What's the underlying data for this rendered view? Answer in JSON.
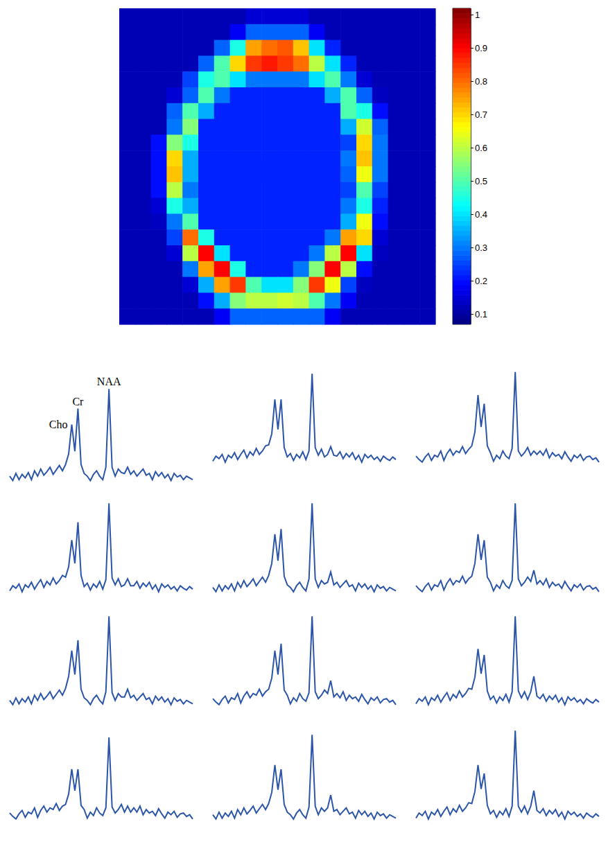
{
  "chart_data": [
    {
      "type": "heatmap",
      "tick_labels": false,
      "color_range": [
        0.07,
        1.02
      ],
      "color_ticks": [
        0.1,
        0.2,
        0.3,
        0.4,
        0.5,
        0.6,
        0.7,
        0.8,
        0.9,
        1
      ],
      "cells": [
        [
          0.12,
          0.12,
          0.12,
          0.12,
          0.12,
          0.12,
          0.12,
          0.12,
          0.15,
          0.15,
          0.15,
          0.15,
          0.12,
          0.12,
          0.12,
          0.12,
          0.12,
          0.12,
          0.12,
          0.12
        ],
        [
          0.12,
          0.12,
          0.12,
          0.12,
          0.12,
          0.12,
          0.12,
          0.18,
          0.28,
          0.28,
          0.28,
          0.28,
          0.18,
          0.12,
          0.12,
          0.12,
          0.12,
          0.12,
          0.12,
          0.12
        ],
        [
          0.12,
          0.12,
          0.12,
          0.12,
          0.12,
          0.12,
          0.28,
          0.45,
          0.75,
          0.8,
          0.82,
          0.72,
          0.4,
          0.22,
          0.12,
          0.12,
          0.12,
          0.12,
          0.12,
          0.12
        ],
        [
          0.12,
          0.12,
          0.12,
          0.12,
          0.12,
          0.28,
          0.5,
          0.7,
          0.85,
          0.88,
          0.85,
          0.8,
          0.6,
          0.4,
          0.22,
          0.12,
          0.12,
          0.12,
          0.12,
          0.12
        ],
        [
          0.12,
          0.12,
          0.12,
          0.12,
          0.25,
          0.45,
          0.5,
          0.4,
          0.3,
          0.3,
          0.3,
          0.3,
          0.4,
          0.5,
          0.3,
          0.15,
          0.12,
          0.12,
          0.12,
          0.12
        ],
        [
          0.12,
          0.12,
          0.12,
          0.15,
          0.28,
          0.5,
          0.3,
          0.22,
          0.22,
          0.22,
          0.22,
          0.22,
          0.22,
          0.35,
          0.5,
          0.28,
          0.13,
          0.12,
          0.12,
          0.12
        ],
        [
          0.12,
          0.12,
          0.12,
          0.28,
          0.5,
          0.35,
          0.22,
          0.22,
          0.22,
          0.22,
          0.22,
          0.22,
          0.22,
          0.22,
          0.5,
          0.45,
          0.2,
          0.12,
          0.12,
          0.12
        ],
        [
          0.12,
          0.12,
          0.12,
          0.3,
          0.55,
          0.22,
          0.22,
          0.22,
          0.22,
          0.22,
          0.22,
          0.22,
          0.22,
          0.22,
          0.35,
          0.62,
          0.28,
          0.12,
          0.12,
          0.12
        ],
        [
          0.12,
          0.12,
          0.2,
          0.55,
          0.45,
          0.22,
          0.22,
          0.22,
          0.22,
          0.22,
          0.22,
          0.22,
          0.22,
          0.22,
          0.25,
          0.7,
          0.3,
          0.12,
          0.12,
          0.12
        ],
        [
          0.12,
          0.12,
          0.2,
          0.7,
          0.35,
          0.22,
          0.22,
          0.22,
          0.22,
          0.22,
          0.22,
          0.22,
          0.22,
          0.22,
          0.3,
          0.72,
          0.3,
          0.12,
          0.12,
          0.12
        ],
        [
          0.12,
          0.12,
          0.2,
          0.72,
          0.35,
          0.22,
          0.22,
          0.22,
          0.22,
          0.22,
          0.22,
          0.22,
          0.22,
          0.22,
          0.28,
          0.65,
          0.3,
          0.12,
          0.12,
          0.12
        ],
        [
          0.12,
          0.12,
          0.2,
          0.6,
          0.3,
          0.22,
          0.22,
          0.22,
          0.22,
          0.22,
          0.22,
          0.22,
          0.22,
          0.22,
          0.25,
          0.5,
          0.25,
          0.12,
          0.12,
          0.12
        ],
        [
          0.12,
          0.12,
          0.15,
          0.45,
          0.35,
          0.22,
          0.22,
          0.22,
          0.22,
          0.22,
          0.22,
          0.22,
          0.22,
          0.22,
          0.3,
          0.45,
          0.22,
          0.12,
          0.12,
          0.12
        ],
        [
          0.12,
          0.12,
          0.13,
          0.3,
          0.5,
          0.22,
          0.22,
          0.22,
          0.22,
          0.22,
          0.22,
          0.22,
          0.22,
          0.22,
          0.35,
          0.65,
          0.2,
          0.12,
          0.12,
          0.12
        ],
        [
          0.12,
          0.12,
          0.12,
          0.25,
          0.8,
          0.45,
          0.22,
          0.22,
          0.22,
          0.22,
          0.22,
          0.22,
          0.22,
          0.3,
          0.75,
          0.7,
          0.15,
          0.12,
          0.12,
          0.12
        ],
        [
          0.12,
          0.12,
          0.12,
          0.15,
          0.6,
          0.9,
          0.4,
          0.22,
          0.22,
          0.22,
          0.22,
          0.22,
          0.3,
          0.6,
          0.9,
          0.4,
          0.13,
          0.12,
          0.12,
          0.12
        ],
        [
          0.12,
          0.12,
          0.12,
          0.12,
          0.3,
          0.75,
          0.9,
          0.45,
          0.22,
          0.22,
          0.22,
          0.3,
          0.55,
          0.9,
          0.6,
          0.2,
          0.12,
          0.12,
          0.12,
          0.12
        ],
        [
          0.12,
          0.12,
          0.12,
          0.12,
          0.15,
          0.35,
          0.75,
          0.85,
          0.5,
          0.4,
          0.4,
          0.55,
          0.85,
          0.65,
          0.25,
          0.13,
          0.12,
          0.12,
          0.12,
          0.12
        ],
        [
          0.12,
          0.12,
          0.12,
          0.12,
          0.12,
          0.2,
          0.35,
          0.55,
          0.6,
          0.6,
          0.62,
          0.6,
          0.5,
          0.3,
          0.18,
          0.12,
          0.12,
          0.12,
          0.12,
          0.12
        ],
        [
          0.12,
          0.12,
          0.12,
          0.12,
          0.12,
          0.12,
          0.18,
          0.28,
          0.28,
          0.28,
          0.28,
          0.28,
          0.28,
          0.18,
          0.12,
          0.12,
          0.12,
          0.12,
          0.12,
          0.12
        ]
      ]
    },
    {
      "type": "line",
      "color": "#2b55a8",
      "ylim": [
        -0.12,
        1.05
      ],
      "tick_labels": false,
      "annotations": [
        {
          "text": "Cho",
          "x": 20
        },
        {
          "text": "Cr",
          "x": 22
        },
        {
          "text": "NAA",
          "x": 32
        }
      ],
      "values": [
        0.02,
        -0.03,
        0.05,
        -0.02,
        0.04,
        0,
        0.06,
        -0.02,
        0.08,
        0.02,
        0.1,
        0.03,
        0.07,
        0.12,
        0.04,
        0.09,
        0.14,
        0.08,
        0.15,
        0.27,
        0.6,
        0.3,
        0.78,
        0.15,
        0.05,
        0.02,
        -0.03,
        0.04,
        0.08,
        0.02,
        -0.02,
        0.12,
        1.0,
        0.12,
        0.02,
        0.1,
        0.06,
        0.05,
        0.12,
        0.04,
        0.08,
        0.02,
        0.06,
        0.1,
        0.03,
        0.05,
        -0.02,
        0.07,
        0.02,
        0.06,
        0,
        0.04,
        -0.03,
        0.05,
        0.01,
        0.03,
        -0.02,
        0.02,
        0,
        -0.02
      ]
    },
    {
      "type": "line",
      "color": "#2b55a8",
      "ylim": [
        -0.12,
        1.05
      ],
      "tick_labels": false,
      "values": [
        -0.02,
        0.04,
        0.01,
        0.06,
        -0.03,
        0.05,
        0.02,
        0.08,
        0,
        0.06,
        0.11,
        0.02,
        0.09,
        0.05,
        0.13,
        0.06,
        0.1,
        0.16,
        0.17,
        0.3,
        0.7,
        0.35,
        0.7,
        0.14,
        0.03,
        0.07,
        -0.01,
        0.06,
        0.02,
        0.09,
        0,
        0.1,
        1.0,
        0.14,
        0.05,
        0.12,
        0.03,
        0.06,
        0.15,
        0.05,
        0.04,
        0.09,
        0.01,
        0.07,
        0.03,
        0.08,
        0,
        0.05,
        -0.03,
        0.06,
        0.02,
        0.05,
        0,
        0.03,
        -0.02,
        0.04,
        0.01,
        -0.01,
        0.03,
        0
      ]
    },
    {
      "type": "line",
      "color": "#2b55a8",
      "ylim": [
        -0.12,
        1.05
      ],
      "tick_labels": false,
      "values": [
        0.04,
        0,
        -0.03,
        0.03,
        0.07,
        -0.01,
        0.05,
        0.03,
        0.1,
        -0.01,
        0.07,
        0.12,
        0.05,
        0.1,
        0.08,
        0.15,
        0.07,
        0.12,
        0.16,
        0.32,
        0.75,
        0.38,
        0.65,
        0.16,
        0.08,
        -0.02,
        0.05,
        0.01,
        0.1,
        0.04,
        0.01,
        0.13,
        1.02,
        0.1,
        0.04,
        0.08,
        0.14,
        0.05,
        0.1,
        0.06,
        0.1,
        0.05,
        0.12,
        0.02,
        0.08,
        0.04,
        0.06,
        0.01,
        0.09,
        0.03,
        -0.02,
        0.05,
        0.02,
        0.06,
        -0.01,
        0.03,
        0.04,
        0,
        0.02,
        -0.03
      ]
    },
    {
      "type": "line",
      "color": "#2b55a8",
      "ylim": [
        -0.12,
        1.05
      ],
      "tick_labels": false,
      "values": [
        -0.02,
        0.04,
        0.01,
        0.06,
        -0.03,
        0.05,
        0.02,
        0.08,
        0,
        0.06,
        0.11,
        0.02,
        0.09,
        0.05,
        0.13,
        0.06,
        0.1,
        0.16,
        0.14,
        0.26,
        0.57,
        0.3,
        0.78,
        0.16,
        0.03,
        0.07,
        -0.01,
        0.06,
        0.02,
        0.09,
        0,
        0.11,
        1.0,
        0.13,
        0.05,
        0.12,
        0.03,
        0.05,
        0.12,
        0.04,
        0.04,
        0.09,
        0.01,
        0.07,
        0.03,
        0.08,
        0,
        0.05,
        -0.03,
        0.06,
        0.02,
        0.05,
        0,
        0.03,
        -0.02,
        0.04,
        0.01,
        -0.01,
        0.03,
        0
      ]
    },
    {
      "type": "line",
      "color": "#2b55a8",
      "ylim": [
        -0.12,
        1.05
      ],
      "tick_labels": false,
      "values": [
        0.02,
        -0.03,
        0.05,
        -0.02,
        0.04,
        0,
        0.06,
        -0.02,
        0.08,
        0.02,
        0.1,
        0.03,
        0.07,
        0.12,
        0.04,
        0.09,
        0.14,
        0.08,
        0.16,
        0.3,
        0.64,
        0.33,
        0.7,
        0.15,
        0.05,
        0.02,
        -0.03,
        0.04,
        0.08,
        0.02,
        -0.02,
        0.12,
        1.0,
        0.12,
        0.02,
        0.1,
        0.06,
        0.08,
        0.2,
        0.05,
        0.08,
        0.02,
        0.06,
        0.1,
        0.03,
        0.05,
        -0.02,
        0.07,
        0.02,
        0.06,
        0,
        0.04,
        -0.03,
        0.05,
        0.01,
        0.03,
        -0.02,
        0.02,
        0,
        -0.02
      ]
    },
    {
      "type": "line",
      "color": "#2b55a8",
      "ylim": [
        -0.12,
        1.05
      ],
      "tick_labels": false,
      "values": [
        0.04,
        0,
        -0.03,
        0.03,
        0.07,
        -0.01,
        0.05,
        0.03,
        0.1,
        -0.01,
        0.07,
        0.12,
        0.05,
        0.1,
        0.08,
        0.15,
        0.07,
        0.12,
        0.15,
        0.3,
        0.64,
        0.34,
        0.57,
        0.14,
        0.08,
        -0.02,
        0.05,
        0.01,
        0.1,
        0.04,
        0.01,
        0.1,
        1.0,
        0.12,
        0.04,
        0.08,
        0.14,
        0.09,
        0.22,
        0.06,
        0.1,
        0.05,
        0.12,
        0.02,
        0.08,
        0.04,
        0.06,
        0.01,
        0.09,
        0.03,
        -0.02,
        0.05,
        0.02,
        0.06,
        -0.01,
        0.03,
        0.04,
        0,
        0.02,
        -0.03
      ]
    },
    {
      "type": "line",
      "color": "#2b55a8",
      "ylim": [
        -0.12,
        1.05
      ],
      "tick_labels": false,
      "values": [
        0.02,
        -0.03,
        0.05,
        -0.02,
        0.04,
        0,
        0.06,
        -0.02,
        0.08,
        0.02,
        0.1,
        0.03,
        0.07,
        0.12,
        0.04,
        0.09,
        0.14,
        0.08,
        0.16,
        0.3,
        0.6,
        0.32,
        0.72,
        0.15,
        0.05,
        0.02,
        -0.03,
        0.04,
        0.08,
        0.02,
        -0.02,
        0.12,
        1.0,
        0.11,
        0.02,
        0.1,
        0.06,
        0.06,
        0.15,
        0.05,
        0.08,
        0.02,
        0.06,
        0.1,
        0.03,
        0.05,
        -0.02,
        0.07,
        0.02,
        0.06,
        0,
        0.04,
        -0.03,
        0.05,
        0.01,
        0.03,
        -0.02,
        0.02,
        0,
        -0.02
      ]
    },
    {
      "type": "line",
      "color": "#2b55a8",
      "ylim": [
        -0.12,
        1.05
      ],
      "tick_labels": false,
      "values": [
        0.04,
        0,
        -0.03,
        0.03,
        0.07,
        -0.01,
        0.05,
        0.03,
        0.1,
        -0.01,
        0.07,
        0.12,
        0.05,
        0.1,
        0.08,
        0.15,
        0.07,
        0.12,
        0.15,
        0.28,
        0.6,
        0.32,
        0.68,
        0.14,
        0.08,
        -0.02,
        0.05,
        0.01,
        0.1,
        0.04,
        0.01,
        0.11,
        1.0,
        0.12,
        0.04,
        0.08,
        0.14,
        0.1,
        0.25,
        0.06,
        0.1,
        0.05,
        0.12,
        0.02,
        0.08,
        0.04,
        0.06,
        0.01,
        0.09,
        0.03,
        -0.02,
        0.05,
        0.02,
        0.06,
        -0.01,
        0.03,
        0.04,
        0,
        0.02,
        -0.03
      ]
    },
    {
      "type": "line",
      "color": "#2b55a8",
      "ylim": [
        -0.12,
        1.05
      ],
      "tick_labels": false,
      "values": [
        -0.02,
        0.04,
        0.01,
        0.06,
        -0.03,
        0.05,
        0.02,
        0.08,
        0,
        0.06,
        0.11,
        0.02,
        0.09,
        0.05,
        0.13,
        0.06,
        0.1,
        0.16,
        0.15,
        0.29,
        0.62,
        0.33,
        0.55,
        0.13,
        0.03,
        0.07,
        -0.01,
        0.06,
        0.02,
        0.09,
        0,
        0.12,
        1.0,
        0.13,
        0.05,
        0.12,
        0.03,
        0.12,
        0.3,
        0.07,
        0.04,
        0.09,
        0.01,
        0.07,
        0.03,
        0.08,
        0,
        0.05,
        -0.03,
        0.06,
        0.02,
        0.05,
        0,
        0.03,
        -0.02,
        0.04,
        0.01,
        -0.01,
        0.03,
        0
      ]
    },
    {
      "type": "line",
      "color": "#2b55a8",
      "ylim": [
        -0.12,
        1.05
      ],
      "tick_labels": false,
      "values": [
        0.04,
        0,
        -0.03,
        0.03,
        0.07,
        -0.01,
        0.05,
        0.03,
        0.1,
        -0.01,
        0.07,
        0.12,
        0.05,
        0.1,
        0.08,
        0.15,
        0.07,
        0.12,
        0.14,
        0.26,
        0.55,
        0.3,
        0.55,
        0.13,
        0.08,
        -0.02,
        0.05,
        0.01,
        0.1,
        0.04,
        0.01,
        0.1,
        0.92,
        0.11,
        0.04,
        0.08,
        0.14,
        0.05,
        0.12,
        0.05,
        0.1,
        0.05,
        0.12,
        0.02,
        0.08,
        0.04,
        0.06,
        0.01,
        0.09,
        0.03,
        -0.02,
        0.05,
        0.02,
        0.06,
        -0.01,
        0.03,
        0.04,
        0,
        0.02,
        -0.03
      ]
    },
    {
      "type": "line",
      "color": "#2b55a8",
      "ylim": [
        -0.12,
        1.05
      ],
      "tick_labels": false,
      "values": [
        0.02,
        -0.03,
        0.05,
        -0.02,
        0.04,
        0,
        0.06,
        -0.02,
        0.08,
        0.02,
        0.1,
        0.03,
        0.07,
        0.12,
        0.04,
        0.09,
        0.14,
        0.08,
        0.15,
        0.28,
        0.6,
        0.31,
        0.55,
        0.14,
        0.05,
        0.02,
        -0.03,
        0.04,
        0.08,
        0.02,
        -0.02,
        0.11,
        0.95,
        0.12,
        0.02,
        0.1,
        0.06,
        0.1,
        0.25,
        0.06,
        0.08,
        0.02,
        0.06,
        0.1,
        0.03,
        0.05,
        -0.02,
        0.07,
        0.02,
        0.06,
        0,
        0.04,
        -0.03,
        0.05,
        0.01,
        0.03,
        -0.02,
        0.02,
        0,
        -0.02
      ]
    },
    {
      "type": "line",
      "color": "#2b55a8",
      "ylim": [
        -0.12,
        1.05
      ],
      "tick_labels": false,
      "values": [
        -0.02,
        0.04,
        0.01,
        0.06,
        -0.03,
        0.05,
        0.02,
        0.08,
        0,
        0.06,
        0.11,
        0.02,
        0.09,
        0.05,
        0.13,
        0.06,
        0.1,
        0.16,
        0.15,
        0.29,
        0.6,
        0.32,
        0.5,
        0.13,
        0.03,
        0.07,
        -0.01,
        0.06,
        0.02,
        0.09,
        0,
        0.12,
        1.0,
        0.12,
        0.05,
        0.12,
        0.03,
        0.12,
        0.3,
        0.07,
        0.04,
        0.09,
        0.01,
        0.07,
        0.03,
        0.08,
        0,
        0.05,
        -0.03,
        0.06,
        0.02,
        0.05,
        0,
        0.03,
        -0.02,
        0.04,
        0.01,
        -0.01,
        0.03,
        0
      ]
    }
  ]
}
